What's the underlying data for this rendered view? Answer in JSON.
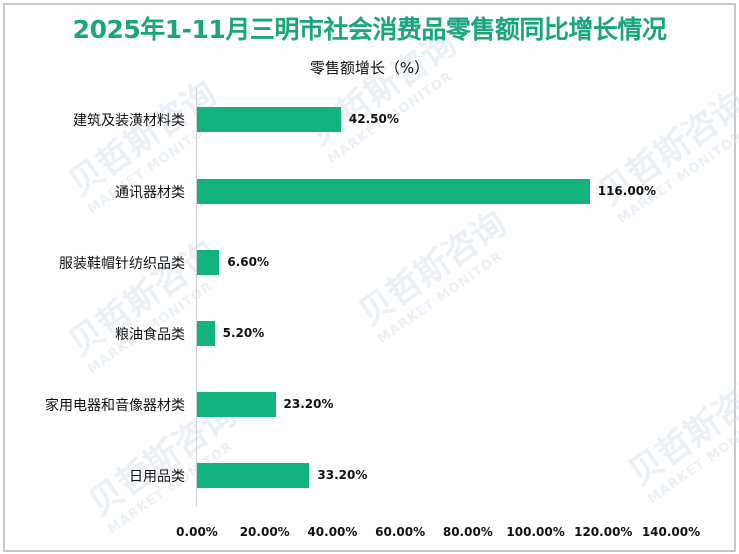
{
  "title": "2025年1-11月三明市社会消费品零售额同比增长情况",
  "colors": {
    "bar": "#12b37f",
    "title": "#1aa57a"
  },
  "watermark": {
    "text": "贝哲斯咨询",
    "sub": "MARKET MONITOR"
  },
  "chart_data": {
    "type": "bar",
    "orientation": "horizontal",
    "title": "2025年1-11月三明市社会消费品零售额同比增长情况",
    "subtitle": "零售额增长（%）",
    "categories": [
      "建筑及装潢材料类",
      "通讯器材类",
      "服装鞋帽针纺织品类",
      "粮油食品类",
      "家用电器和音像器材类",
      "日用品类"
    ],
    "values": [
      42.5,
      116.0,
      6.6,
      5.2,
      23.2,
      33.2
    ],
    "value_labels": [
      "42.50%",
      "116.00%",
      "6.60%",
      "5.20%",
      "23.20%",
      "33.20%"
    ],
    "xlabel": "",
    "ylabel": "",
    "xlim": [
      0,
      140
    ],
    "x_ticks": [
      "0.00%",
      "20.00%",
      "40.00%",
      "60.00%",
      "80.00%",
      "100.00%",
      "120.00%",
      "140.00%"
    ],
    "grid": false,
    "legend": "none"
  }
}
